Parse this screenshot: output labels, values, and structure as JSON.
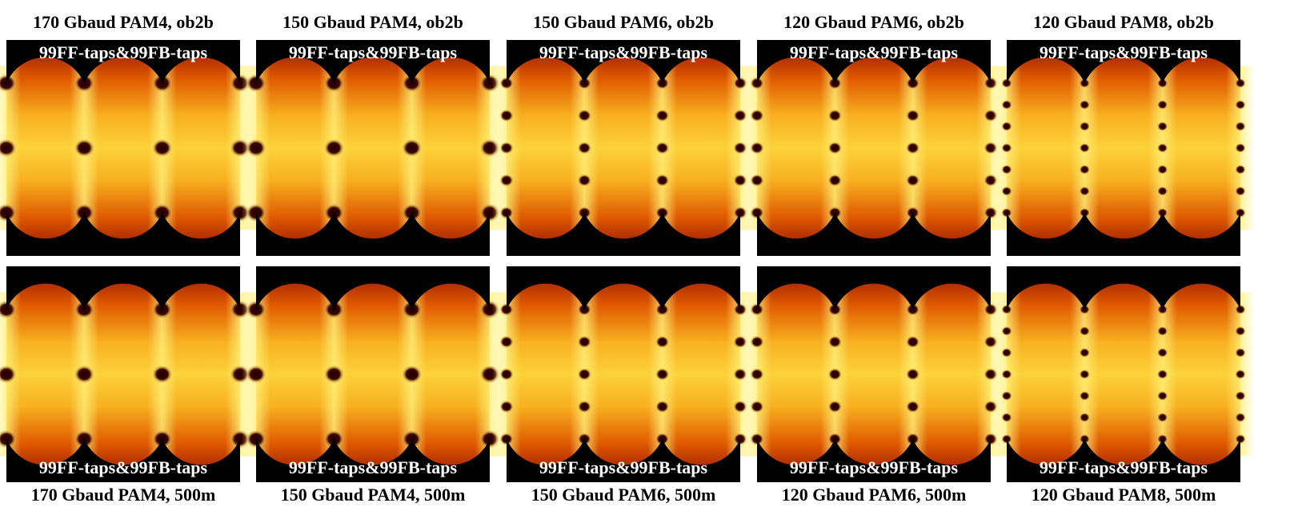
{
  "rows": [
    {
      "panels": [
        {
          "title": "170 Gbaud PAM4, ob2b",
          "label": "99FF-taps&99FB-taps"
        },
        {
          "title": "150 Gbaud PAM4, ob2b",
          "label": "99FF-taps&99FB-taps"
        },
        {
          "title": "150 Gbaud PAM6, ob2b",
          "label": "99FF-taps&99FB-taps"
        },
        {
          "title": "120 Gbaud PAM6, ob2b",
          "label": "99FF-taps&99FB-taps"
        },
        {
          "title": "120 Gbaud PAM8, ob2b",
          "label": "99FF-taps&99FB-taps"
        }
      ]
    },
    {
      "panels": [
        {
          "title": "170 Gbaud PAM4, 500m",
          "label": "99FF-taps&99FB-taps"
        },
        {
          "title": "150 Gbaud PAM4, 500m",
          "label": "99FF-taps&99FB-taps"
        },
        {
          "title": "150 Gbaud PAM6, 500m",
          "label": "99FF-taps&99FB-taps"
        },
        {
          "title": "120 Gbaud PAM6, 500m",
          "label": "99FF-taps&99FB-taps"
        },
        {
          "title": "120 Gbaud PAM8, 500m",
          "label": "99FF-taps&99FB-taps"
        }
      ]
    }
  ]
}
